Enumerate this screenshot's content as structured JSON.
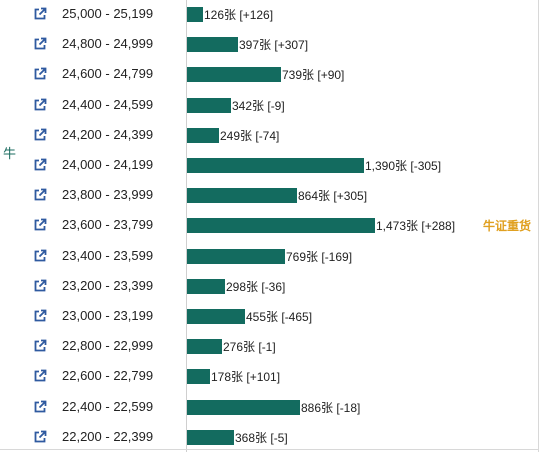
{
  "side_label": "牛",
  "chart_data": {
    "type": "bar",
    "orientation": "horizontal",
    "unit": "张",
    "xlim": [
      0,
      1500
    ],
    "rows": [
      {
        "range": "25,000 - 25,199",
        "value": 126,
        "value_text": "126张",
        "change": "[+126]",
        "badge": ""
      },
      {
        "range": "24,800 - 24,999",
        "value": 397,
        "value_text": "397张",
        "change": "[+307]",
        "badge": ""
      },
      {
        "range": "24,600 - 24,799",
        "value": 739,
        "value_text": "739张",
        "change": "[+90]",
        "badge": ""
      },
      {
        "range": "24,400 - 24,599",
        "value": 342,
        "value_text": "342张",
        "change": "[-9]",
        "badge": ""
      },
      {
        "range": "24,200 - 24,399",
        "value": 249,
        "value_text": "249张",
        "change": "[-74]",
        "badge": ""
      },
      {
        "range": "24,000 - 24,199",
        "value": 1390,
        "value_text": "1,390张",
        "change": "[-305]",
        "badge": ""
      },
      {
        "range": "23,800 - 23,999",
        "value": 864,
        "value_text": "864张",
        "change": "[+305]",
        "badge": ""
      },
      {
        "range": "23,600 - 23,799",
        "value": 1473,
        "value_text": "1,473张",
        "change": "[+288]",
        "badge": "牛证重货"
      },
      {
        "range": "23,400 - 23,599",
        "value": 769,
        "value_text": "769张",
        "change": "[-169]",
        "badge": ""
      },
      {
        "range": "23,200 - 23,399",
        "value": 298,
        "value_text": "298张",
        "change": "[-36]",
        "badge": ""
      },
      {
        "range": "23,000 - 23,199",
        "value": 455,
        "value_text": "455张",
        "change": "[-465]",
        "badge": ""
      },
      {
        "range": "22,800 - 22,999",
        "value": 276,
        "value_text": "276张",
        "change": "[-1]",
        "badge": ""
      },
      {
        "range": "22,600 - 22,799",
        "value": 178,
        "value_text": "178张",
        "change": "[+101]",
        "badge": ""
      },
      {
        "range": "22,400 - 22,599",
        "value": 886,
        "value_text": "886张",
        "change": "[-18]",
        "badge": ""
      },
      {
        "range": "22,200 - 22,399",
        "value": 368,
        "value_text": "368张",
        "change": "[-5]",
        "badge": ""
      }
    ]
  },
  "colors": {
    "bar": "#136b5f",
    "icon": "#2f5aa0",
    "badge": "#e0a020",
    "side_label": "#1a6b5f"
  },
  "icons": {
    "row_link": "external-link-icon"
  }
}
